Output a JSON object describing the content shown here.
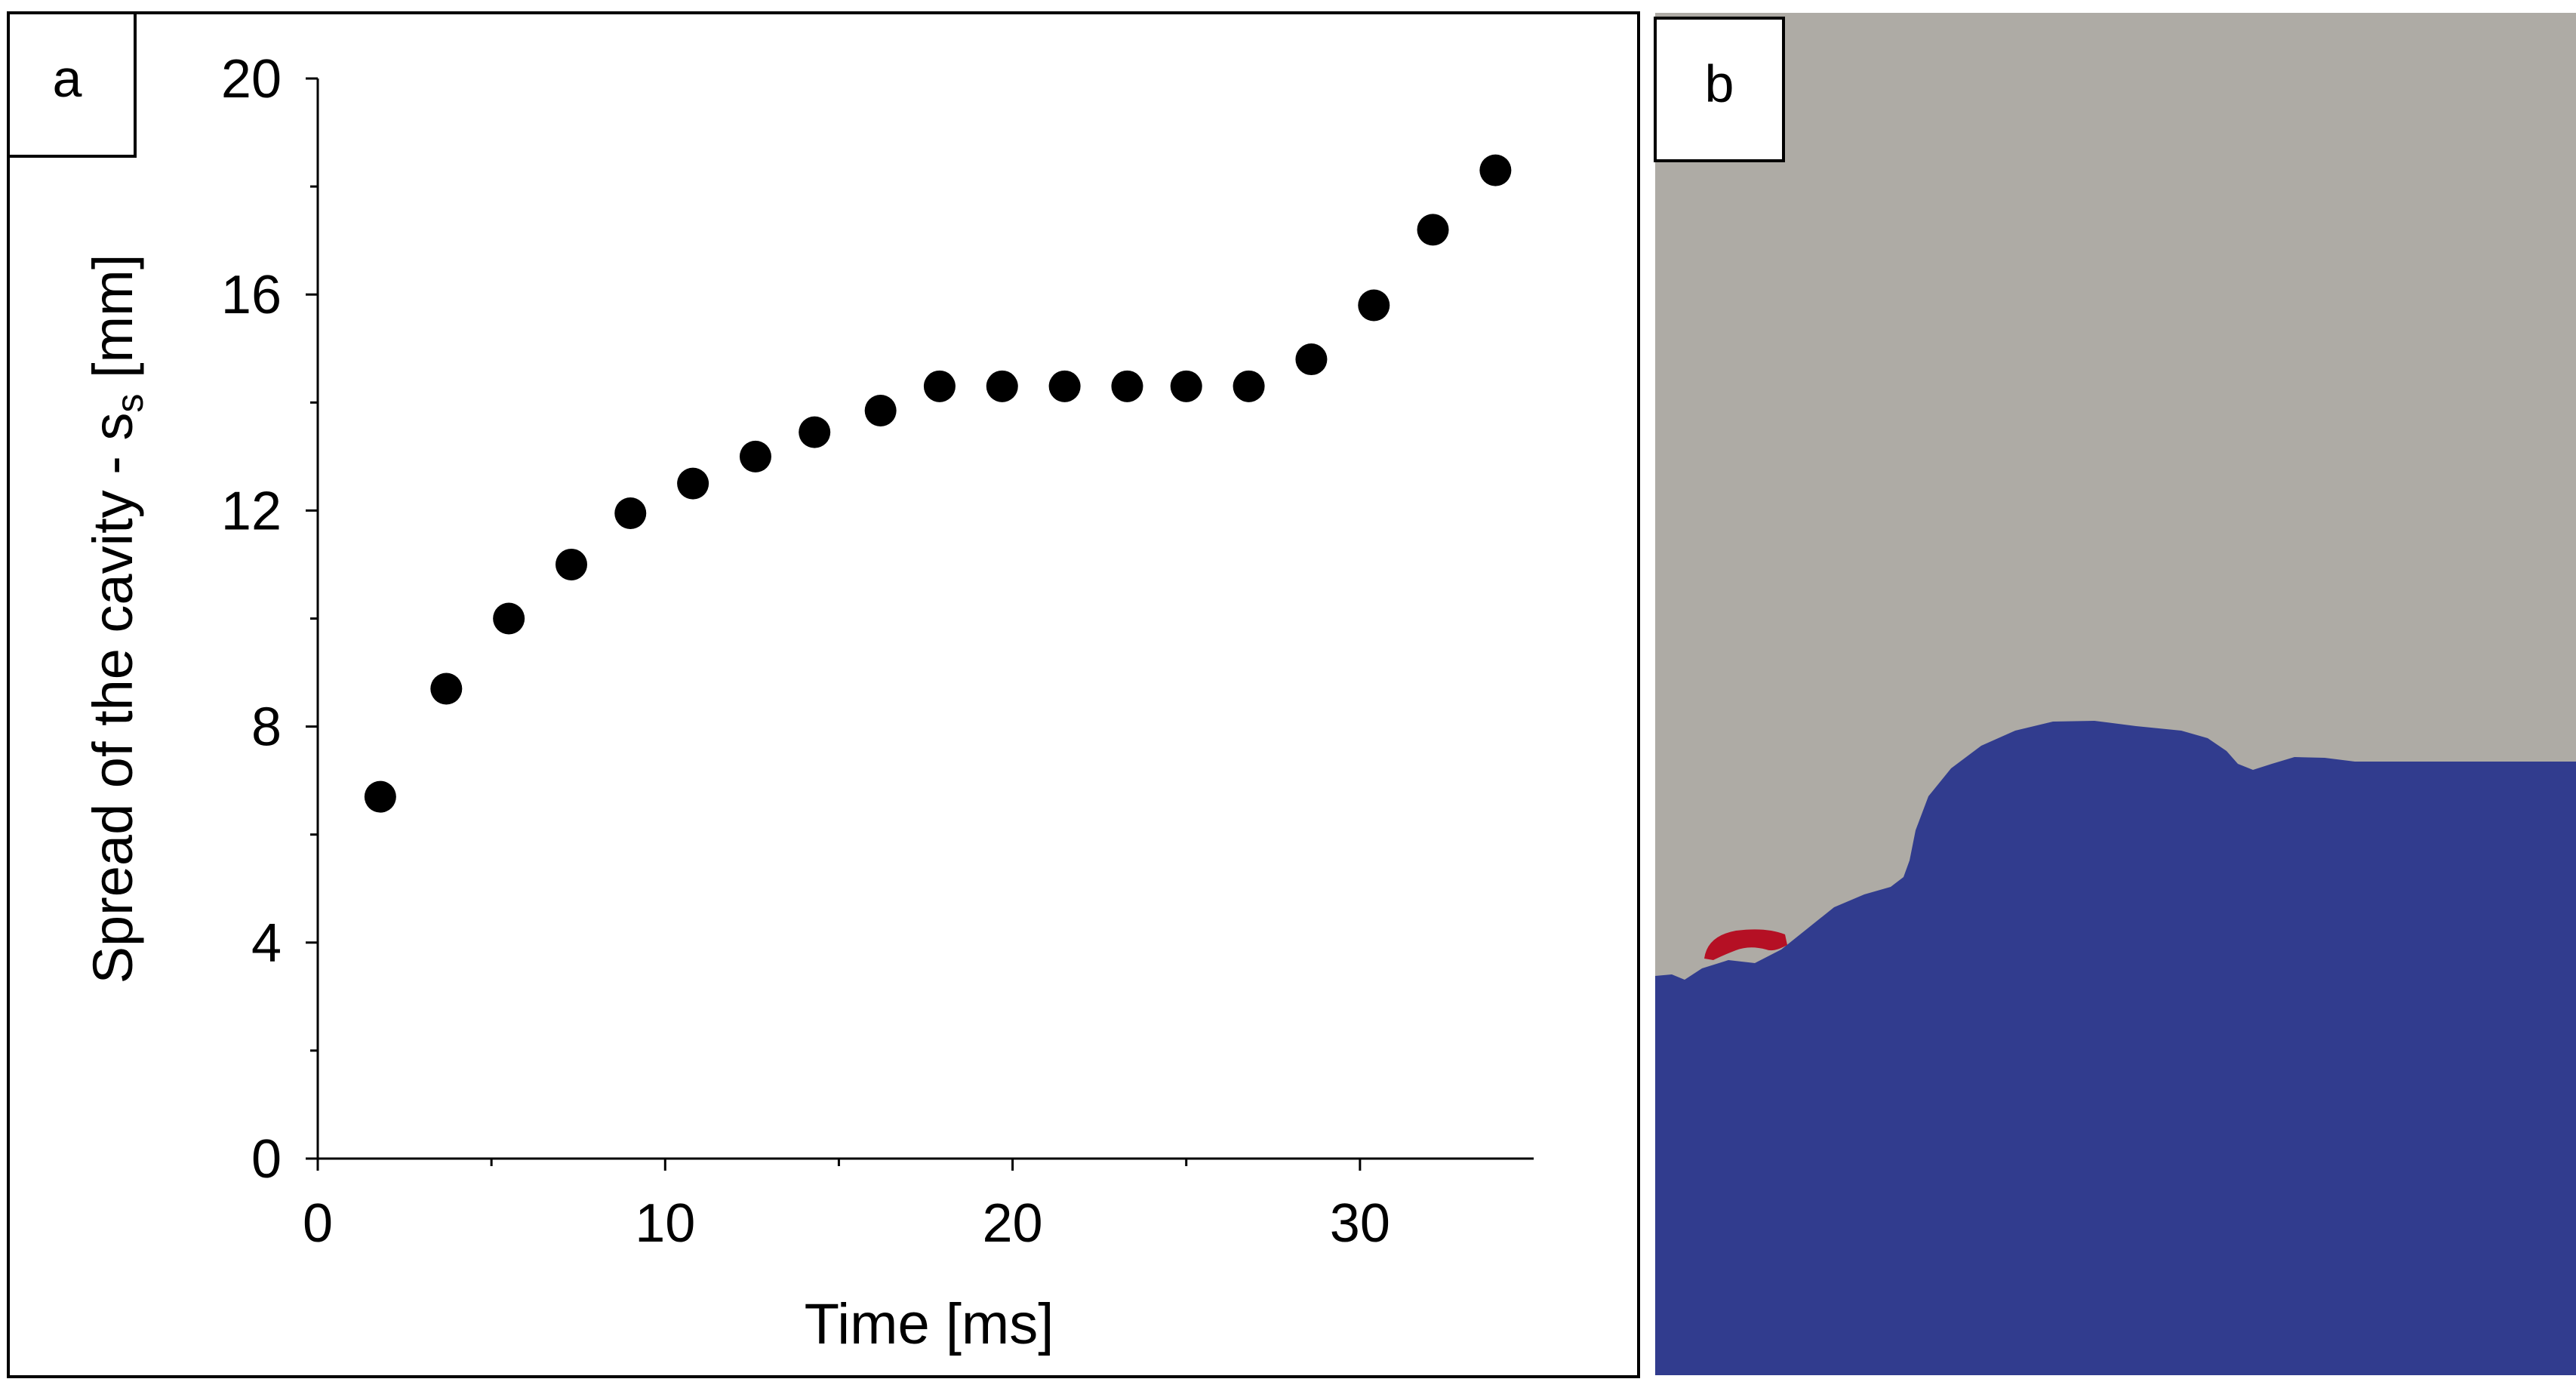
{
  "panels": {
    "a": {
      "label": "a"
    },
    "b": {
      "label": "b"
    }
  },
  "colors": {
    "background": "#ffffff",
    "frame": "#000000",
    "marker": "#000000",
    "sky": "#aeaba5",
    "liquid": "#313c8e",
    "highlight": "#b51024"
  },
  "chart_data": {
    "type": "scatter",
    "title": "",
    "xlabel": "Time [ms]",
    "ylabel": "Spread of the cavity - s",
    "ylabel_subscript": "s",
    "ylabel_suffix": " [mm]",
    "xlim": [
      0,
      35
    ],
    "ylim": [
      0,
      20
    ],
    "xticks": [
      0,
      10,
      20,
      30
    ],
    "yticks": [
      0,
      4,
      8,
      12,
      16,
      20
    ],
    "grid": false,
    "series": [
      {
        "name": "Spread of the cavity",
        "x": [
          1.8,
          3.7,
          5.5,
          7.3,
          9.0,
          10.8,
          12.6,
          14.3,
          16.2,
          17.9,
          19.7,
          21.5,
          23.3,
          25.0,
          26.8,
          28.6,
          30.4,
          32.1,
          33.9
        ],
        "y": [
          6.7,
          8.7,
          10.0,
          11.0,
          11.95,
          12.5,
          13.0,
          13.45,
          13.85,
          14.3,
          14.3,
          14.3,
          14.3,
          14.3,
          14.3,
          14.8,
          15.8,
          17.2,
          18.3
        ]
      }
    ]
  }
}
